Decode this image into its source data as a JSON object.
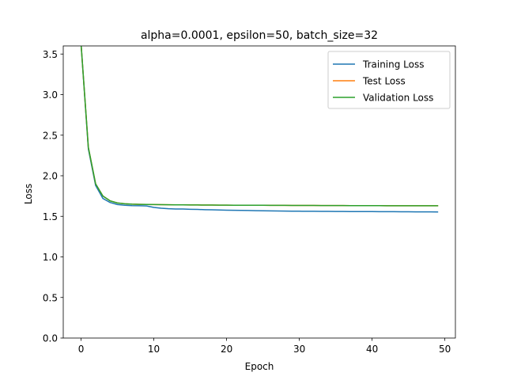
{
  "chart_data": {
    "type": "line",
    "title": "alpha=0.0001, epsilon=50, batch_size=32",
    "xlabel": "Epoch",
    "ylabel": "Loss",
    "xlim": [
      -2.45,
      51.45
    ],
    "ylim": [
      0.0,
      3.6
    ],
    "xticks": [
      0,
      10,
      20,
      30,
      40,
      50
    ],
    "yticks": [
      0.0,
      0.5,
      1.0,
      1.5,
      2.0,
      2.5,
      3.0,
      3.5
    ],
    "grid": false,
    "legend_position": "top-right",
    "series": [
      {
        "name": "Training Loss",
        "color": "#1f77b4",
        "values": [
          3.62,
          2.33,
          1.88,
          1.72,
          1.67,
          1.645,
          1.637,
          1.632,
          1.63,
          1.628,
          1.61,
          1.6,
          1.594,
          1.59,
          1.59,
          1.587,
          1.585,
          1.582,
          1.58,
          1.578,
          1.576,
          1.574,
          1.573,
          1.572,
          1.57,
          1.568,
          1.567,
          1.566,
          1.565,
          1.564,
          1.563,
          1.562,
          1.562,
          1.561,
          1.561,
          1.56,
          1.56,
          1.559,
          1.559,
          1.558,
          1.558,
          1.557,
          1.557,
          1.557,
          1.556,
          1.556,
          1.555,
          1.555,
          1.555,
          1.554
        ]
      },
      {
        "name": "Test Loss",
        "color": "#ff7f0e",
        "values": [
          3.62,
          2.35,
          1.9,
          1.75,
          1.69,
          1.665,
          1.655,
          1.65,
          1.648,
          1.646,
          1.645,
          1.644,
          1.643,
          1.642,
          1.641,
          1.64,
          1.64,
          1.639,
          1.639,
          1.638,
          1.638,
          1.637,
          1.637,
          1.636,
          1.636,
          1.636,
          1.635,
          1.635,
          1.635,
          1.634,
          1.634,
          1.634,
          1.634,
          1.633,
          1.633,
          1.633,
          1.633,
          1.632,
          1.632,
          1.632,
          1.632,
          1.632,
          1.631,
          1.631,
          1.631,
          1.631,
          1.631,
          1.631,
          1.63,
          1.63
        ]
      },
      {
        "name": "Validation Loss",
        "color": "#2ca02c",
        "values": [
          3.62,
          2.35,
          1.9,
          1.75,
          1.69,
          1.665,
          1.655,
          1.65,
          1.648,
          1.646,
          1.645,
          1.644,
          1.643,
          1.642,
          1.641,
          1.64,
          1.64,
          1.639,
          1.639,
          1.638,
          1.638,
          1.637,
          1.637,
          1.636,
          1.636,
          1.636,
          1.635,
          1.635,
          1.635,
          1.634,
          1.634,
          1.634,
          1.634,
          1.633,
          1.633,
          1.633,
          1.633,
          1.632,
          1.632,
          1.632,
          1.632,
          1.632,
          1.631,
          1.631,
          1.631,
          1.631,
          1.631,
          1.631,
          1.63,
          1.63
        ]
      }
    ]
  }
}
